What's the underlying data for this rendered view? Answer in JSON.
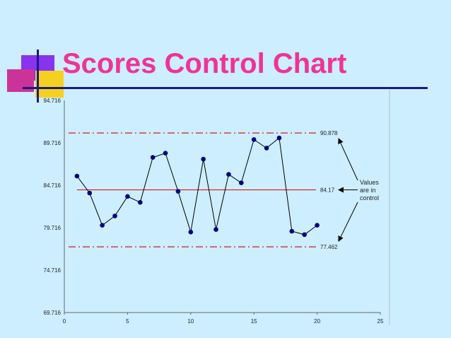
{
  "title": "Scores Control Chart",
  "chart_data": {
    "type": "line",
    "x": [
      1,
      2,
      3,
      4,
      5,
      6,
      7,
      8,
      9,
      10,
      11,
      12,
      13,
      14,
      15,
      16,
      17,
      18,
      19,
      20
    ],
    "series": [
      {
        "values": [
          85.8,
          83.8,
          80.0,
          81.1,
          83.4,
          82.7,
          88.0,
          88.5,
          84.0,
          79.2,
          87.8,
          79.5,
          86.0,
          85.0,
          90.1,
          89.1,
          90.3,
          79.3,
          78.9,
          80.0
        ]
      }
    ],
    "reference_lines": [
      {
        "value": 90.878,
        "label": "90.878",
        "style": "dash-dot",
        "color": "#dd0000"
      },
      {
        "value": 84.17,
        "label": "84.17",
        "style": "solid",
        "color": "#dd0000"
      },
      {
        "value": 77.462,
        "label": "77.462",
        "style": "dash-dot",
        "color": "#dd0000"
      }
    ],
    "xlim": [
      0,
      25
    ],
    "ylim": [
      69.716,
      94.716
    ],
    "x_ticks": [
      0,
      5,
      10,
      15,
      20,
      25
    ],
    "y_ticks": [
      69.716,
      74.716,
      79.716,
      84.716,
      89.716,
      94.716
    ],
    "x_tick_labels": [
      "0",
      "5",
      "10",
      "15",
      "20",
      "25"
    ],
    "y_tick_labels": [
      "69.716",
      "74.716",
      "79.716",
      "84.716",
      "89.716",
      "94.716"
    ],
    "annotation": [
      "Values",
      "are in",
      "control"
    ],
    "marker_color": "#000080",
    "line_color": "#000000"
  }
}
